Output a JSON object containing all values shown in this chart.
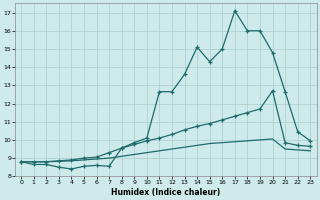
{
  "xlabel": "Humidex (Indice chaleur)",
  "bg_color": "#ceeaea",
  "grid_color": "#aacccc",
  "line_color": "#1e6b6b",
  "xlim": [
    0,
    23
  ],
  "ylim": [
    8,
    17.5
  ],
  "xticks": [
    0,
    1,
    2,
    3,
    4,
    5,
    6,
    7,
    8,
    9,
    10,
    11,
    12,
    13,
    14,
    15,
    16,
    17,
    18,
    19,
    20,
    21,
    22,
    23
  ],
  "yticks": [
    8,
    9,
    10,
    11,
    12,
    13,
    14,
    15,
    16,
    17
  ],
  "series1_x": [
    0,
    1,
    2,
    3,
    4,
    5,
    6,
    7,
    8,
    9,
    10,
    11,
    12,
    13,
    14,
    15,
    16,
    17,
    18,
    19,
    20,
    21,
    22,
    23
  ],
  "series1_y": [
    8.8,
    8.65,
    8.65,
    8.5,
    8.4,
    8.55,
    8.6,
    8.55,
    9.55,
    9.85,
    10.1,
    12.65,
    12.65,
    13.6,
    15.1,
    14.3,
    15.0,
    17.1,
    16.0,
    16.0,
    14.8,
    12.65,
    10.45,
    9.95
  ],
  "series2_x": [
    0,
    1,
    2,
    3,
    4,
    5,
    6,
    7,
    8,
    9,
    10,
    11,
    12,
    13,
    14,
    15,
    16,
    17,
    18,
    19,
    20,
    21,
    22,
    23
  ],
  "series2_y": [
    8.8,
    8.8,
    8.8,
    8.85,
    8.9,
    9.0,
    9.05,
    9.3,
    9.55,
    9.75,
    9.95,
    10.1,
    10.3,
    10.55,
    10.75,
    10.9,
    11.1,
    11.3,
    11.5,
    11.7,
    12.7,
    9.85,
    9.7,
    9.65
  ],
  "series3_x": [
    0,
    1,
    2,
    3,
    4,
    5,
    6,
    7,
    8,
    9,
    10,
    11,
    12,
    13,
    14,
    15,
    16,
    17,
    18,
    19,
    20,
    21,
    22,
    23
  ],
  "series3_y": [
    8.8,
    8.8,
    8.8,
    8.82,
    8.85,
    8.9,
    8.95,
    9.0,
    9.1,
    9.2,
    9.3,
    9.4,
    9.5,
    9.6,
    9.7,
    9.8,
    9.85,
    9.9,
    9.95,
    10.0,
    10.05,
    9.5,
    9.45,
    9.4
  ]
}
